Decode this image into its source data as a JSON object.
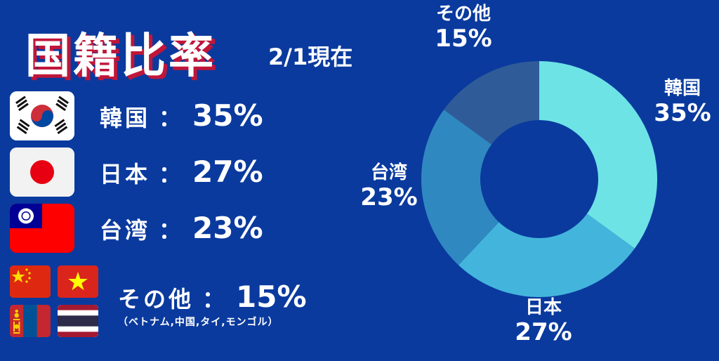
{
  "header": {
    "title": "国籍比率",
    "as_of": "2/1現在"
  },
  "legend": [
    {
      "name": "韓国",
      "sep": "：",
      "pct": "35%"
    },
    {
      "name": "日本",
      "sep": "：",
      "pct": "27%"
    },
    {
      "name": "台湾",
      "sep": "：",
      "pct": "23%"
    },
    {
      "name": "その他",
      "sep": "：",
      "pct": "15%"
    }
  ],
  "other_note": "（ベトナム,中国,タイ,モンゴル）",
  "flags": {
    "korea": "korea-flag-icon",
    "japan": "japan-flag-icon",
    "taiwan": "taiwan-flag-icon",
    "china": "china-flag-icon",
    "vietnam": "vietnam-flag-icon",
    "mongolia": "mongolia-flag-icon",
    "thailand": "thailand-flag-icon"
  },
  "colors": {
    "background": "#0a3a9e",
    "korea": "#6de3e6",
    "japan": "#43b5dc",
    "taiwan": "#3088c0",
    "other": "#2f5c99",
    "title_shadow": "#c0163a"
  },
  "chart_data": {
    "type": "pie",
    "variant": "donut",
    "categories": [
      "韓国",
      "日本",
      "台湾",
      "その他"
    ],
    "values": [
      35,
      27,
      23,
      15
    ],
    "value_labels": [
      "35%",
      "27%",
      "23%",
      "15%"
    ],
    "title": "国籍比率",
    "subtitle": "2/1現在",
    "start": "top",
    "direction": "clockwise",
    "legend": "left"
  }
}
